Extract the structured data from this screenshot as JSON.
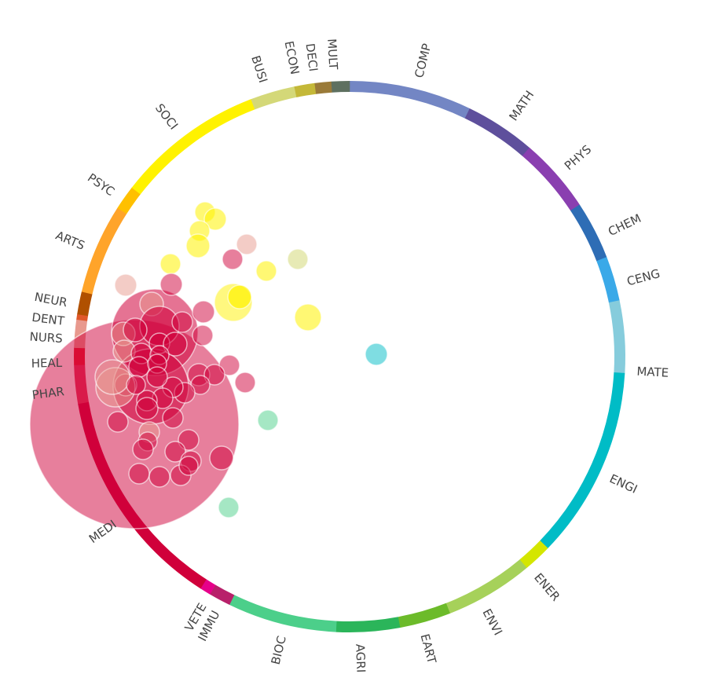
{
  "chart_data": {
    "type": "chord-bubble",
    "title": "",
    "segments": [
      {
        "label": "COMP",
        "color": "#7386c4",
        "share": 7.17
      },
      {
        "label": "MATH",
        "color": "#5e4f9c",
        "share": 4.14
      },
      {
        "label": "PHYS",
        "color": "#8a3fb0",
        "share": 4.39
      },
      {
        "label": "CHEM",
        "color": "#2e6db5",
        "share": 3.42
      },
      {
        "label": "CENG",
        "color": "#3aa9e8",
        "share": 2.61
      },
      {
        "label": "MATE",
        "color": "#86ccdc",
        "share": 4.22
      },
      {
        "label": "ENGI",
        "color": "#00bcc6",
        "share": 11.28
      },
      {
        "label": "ENER",
        "color": "#d4e600",
        "share": 1.67
      },
      {
        "label": "ENVI",
        "color": "#a6d15a",
        "share": 5.17
      },
      {
        "label": "EART",
        "color": "#6cbb2a",
        "share": 3.0
      },
      {
        "label": "AGRI",
        "color": "#2bb55a",
        "share": 3.72
      },
      {
        "label": "BIOC",
        "color": "#4ccf8a",
        "share": 6.39
      },
      {
        "label": "IMMU",
        "color": "#b8206a",
        "share": 1.28
      },
      {
        "label": "VETE",
        "color": "#e6008a",
        "share": 0.64
      },
      {
        "label": "MEDI",
        "color": "#d0003a",
        "share": 13.17
      },
      {
        "label": "PHAR",
        "color": "#e3345a",
        "share": 2.25
      },
      {
        "label": "HEAL",
        "color": "#e5192e",
        "share": 1.0
      },
      {
        "label": "NURS",
        "color": "#e8998e",
        "share": 1.64
      },
      {
        "label": "DENT",
        "color": "#e0582a",
        "share": 0.31
      },
      {
        "label": "NEUR",
        "color": "#b05000",
        "share": 1.33
      },
      {
        "label": "ARTS",
        "color": "#ffa42a",
        "share": 5.28
      },
      {
        "label": "PSYC",
        "color": "#ffc000",
        "share": 1.44
      },
      {
        "label": "SOCI",
        "color": "#fff200",
        "share": 8.67
      },
      {
        "label": "BUSI",
        "color": "#d4d878",
        "share": 2.61
      },
      {
        "label": "ECON",
        "color": "#c4b838",
        "share": 1.19
      },
      {
        "label": "DECI",
        "color": "#9a7a38",
        "share": 0.97
      },
      {
        "label": "MULT",
        "color": "#5e7060",
        "share": 1.06
      }
    ]
  }
}
